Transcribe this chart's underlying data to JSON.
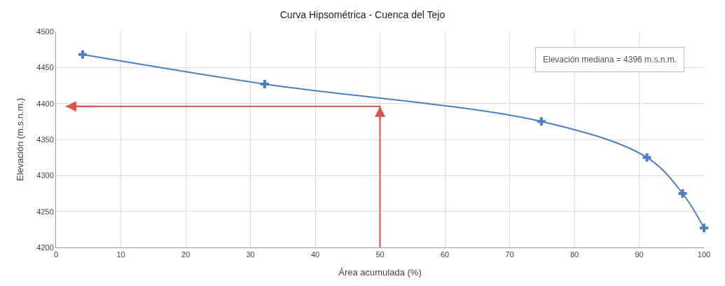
{
  "chart_data": {
    "type": "line",
    "title": "Curva Hipsométrica - Cuenca del Tejo",
    "xlabel": "Área acumulada (%)",
    "ylabel": "Elevación (m.s.n.m.)",
    "annotations": [
      "Elevación mediana = 4396 m.s.n.m."
    ],
    "series": [
      {
        "color": "#4a7fc1",
        "x": [
          4.1,
          32.2,
          74.9,
          91.2,
          96.7,
          100
        ],
        "values": [
          4468,
          4427,
          4375,
          4325,
          4275,
          4227
        ],
        "marker": "cross"
      },
      {
        "color": "#d9534f",
        "x": [
          50,
          50,
          1.5
        ],
        "values": [
          4200,
          4396,
          4396
        ],
        "marker": "none"
      }
    ],
    "xlim": [
      0,
      100
    ],
    "xticks": [
      0,
      10,
      20,
      30,
      40,
      50,
      60,
      70,
      80,
      90,
      100
    ],
    "ylim": [
      4200,
      4500
    ],
    "yticks": [
      4200,
      4250,
      4300,
      4350,
      4400,
      4450,
      4500
    ],
    "grid": true
  }
}
